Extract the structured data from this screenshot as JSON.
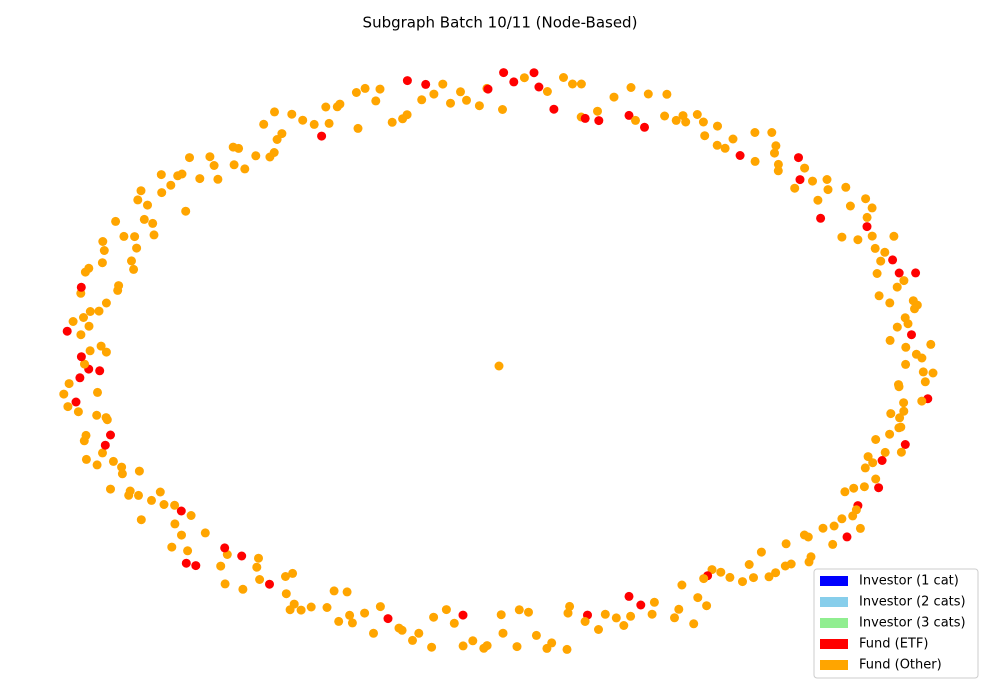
{
  "title": "Subgraph Batch 10/11 (Node-Based)",
  "legend": {
    "items": [
      {
        "label": "Investor (1 cat)",
        "color": "#0000ff"
      },
      {
        "label": "Investor (2 cats)",
        "color": "#87ceeb"
      },
      {
        "label": "Investor (3 cats)",
        "color": "#90ee90"
      },
      {
        "label": "Fund (ETF)",
        "color": "#ff0000"
      },
      {
        "label": "Fund (Other)",
        "color": "#ffa500"
      }
    ]
  }
}
